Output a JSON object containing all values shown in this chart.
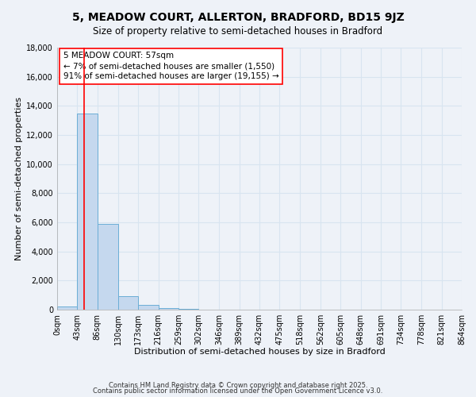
{
  "title": "5, MEADOW COURT, ALLERTON, BRADFORD, BD15 9JZ",
  "subtitle": "Size of property relative to semi-detached houses in Bradford",
  "xlabel": "Distribution of semi-detached houses by size in Bradford",
  "ylabel": "Number of semi-detached properties",
  "bar_edges": [
    0,
    43,
    86,
    130,
    173,
    216,
    259,
    302,
    346,
    389,
    432,
    475,
    518,
    562,
    605,
    648,
    691,
    734,
    778,
    821,
    864
  ],
  "bar_heights": [
    200,
    13500,
    5900,
    950,
    350,
    100,
    50,
    0,
    0,
    0,
    0,
    0,
    0,
    0,
    0,
    0,
    0,
    0,
    0,
    0
  ],
  "bar_color": "#c5d8ee",
  "bar_edgecolor": "#6baed6",
  "vline_x": 57,
  "vline_color": "red",
  "ylim": [
    0,
    18000
  ],
  "yticks": [
    0,
    2000,
    4000,
    6000,
    8000,
    10000,
    12000,
    14000,
    16000,
    18000
  ],
  "xtick_labels": [
    "0sqm",
    "43sqm",
    "86sqm",
    "130sqm",
    "173sqm",
    "216sqm",
    "259sqm",
    "302sqm",
    "346sqm",
    "389sqm",
    "432sqm",
    "475sqm",
    "518sqm",
    "562sqm",
    "605sqm",
    "648sqm",
    "691sqm",
    "734sqm",
    "778sqm",
    "821sqm",
    "864sqm"
  ],
  "annotation_line1": "5 MEADOW COURT: 57sqm",
  "annotation_line2": "← 7% of semi-detached houses are smaller (1,550)",
  "annotation_line3": "91% of semi-detached houses are larger (19,155) →",
  "footnote1": "Contains HM Land Registry data © Crown copyright and database right 2025.",
  "footnote2": "Contains public sector information licensed under the Open Government Licence v3.0.",
  "bg_color": "#eef2f8",
  "grid_color": "#d8e4f0",
  "title_fontsize": 10,
  "subtitle_fontsize": 8.5,
  "axis_label_fontsize": 8,
  "tick_fontsize": 7,
  "annotation_fontsize": 7.5,
  "footnote_fontsize": 6
}
